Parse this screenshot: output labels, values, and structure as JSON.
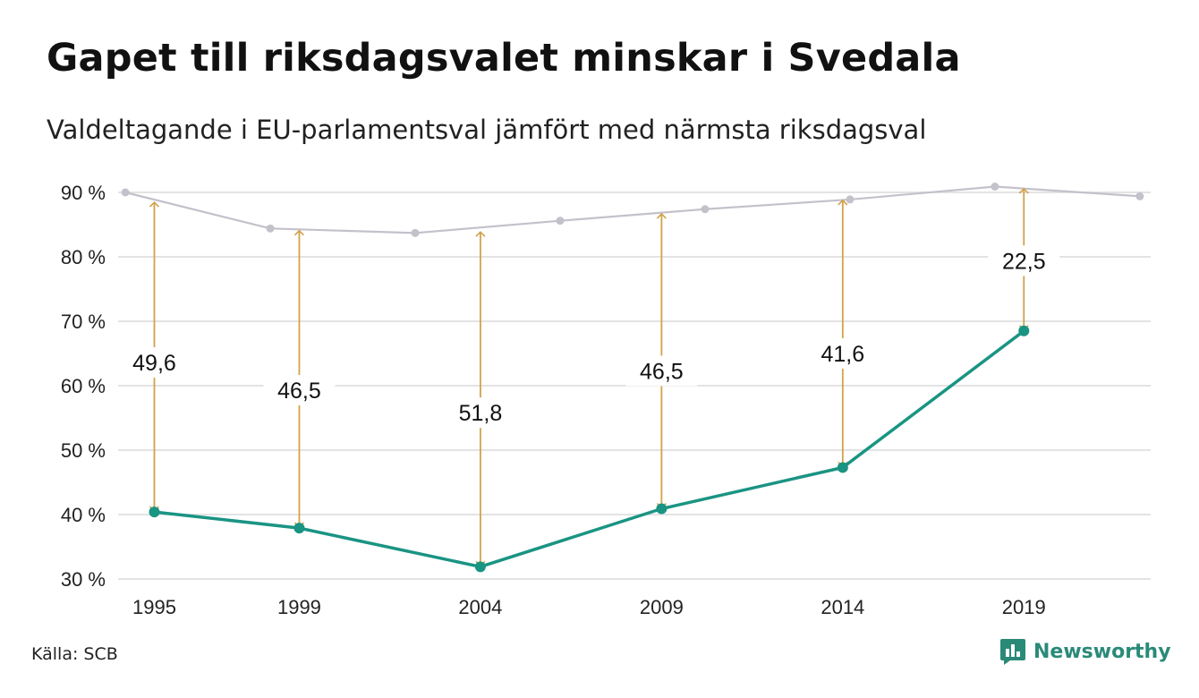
{
  "title": "Gapet till riksdagsvalet minskar i Svedala",
  "subtitle": "Valdeltagande i EU-parlamentsval jämfört med närmsta riksdagsval",
  "source": "Källa: SCB",
  "brand": "Newsworthy",
  "colors": {
    "eu_line": "#1a9483",
    "riksdag_line": "#c4c1cb",
    "gap_arrow": "#d1a24a",
    "grid": "#e3e3e3",
    "brand": "#2a8a78"
  },
  "chart_data": {
    "type": "line",
    "ylim": [
      30,
      90
    ],
    "yticks": [
      30,
      40,
      50,
      60,
      70,
      80,
      90
    ],
    "ytick_labels": [
      "30 %",
      "40 %",
      "50 %",
      "60 %",
      "70 %",
      "80 %",
      "90 %"
    ],
    "xlim": [
      1994.0,
      2022.5
    ],
    "xticks": [
      1995,
      1999,
      2004,
      2009,
      2014,
      2019
    ],
    "xtick_labels": [
      "1995",
      "1999",
      "2004",
      "2009",
      "2014",
      "2019"
    ],
    "grid": true,
    "series": [
      {
        "key": "riksdag",
        "x": [
          1994.2,
          1998.2,
          2002.2,
          2006.2,
          2010.2,
          2014.2,
          2018.2,
          2022.2
        ],
        "values": [
          90.0,
          84.4,
          83.7,
          85.6,
          87.4,
          88.9,
          90.9,
          89.4
        ]
      },
      {
        "key": "eu",
        "x": [
          1995,
          1999,
          2004,
          2009,
          2014,
          2019
        ],
        "values": [
          40.4,
          37.9,
          31.9,
          40.9,
          47.3,
          68.5
        ]
      }
    ],
    "gaps": [
      {
        "x": 1995,
        "top": 88.6,
        "bottom": 40.4,
        "label": "49,6",
        "label_y": 63.6
      },
      {
        "x": 1999,
        "top": 84.2,
        "bottom": 37.9,
        "label": "46,5",
        "label_y": 59.3
      },
      {
        "x": 2004,
        "top": 84.0,
        "bottom": 31.9,
        "label": "51,8",
        "label_y": 55.8
      },
      {
        "x": 2009,
        "top": 86.8,
        "bottom": 40.9,
        "label": "46,5",
        "label_y": 62.3
      },
      {
        "x": 2014,
        "top": 88.9,
        "bottom": 47.3,
        "label": "41,6",
        "label_y": 65.0
      },
      {
        "x": 2019,
        "top": 90.7,
        "bottom": 68.5,
        "label": "22,5",
        "label_y": 79.4
      }
    ]
  }
}
